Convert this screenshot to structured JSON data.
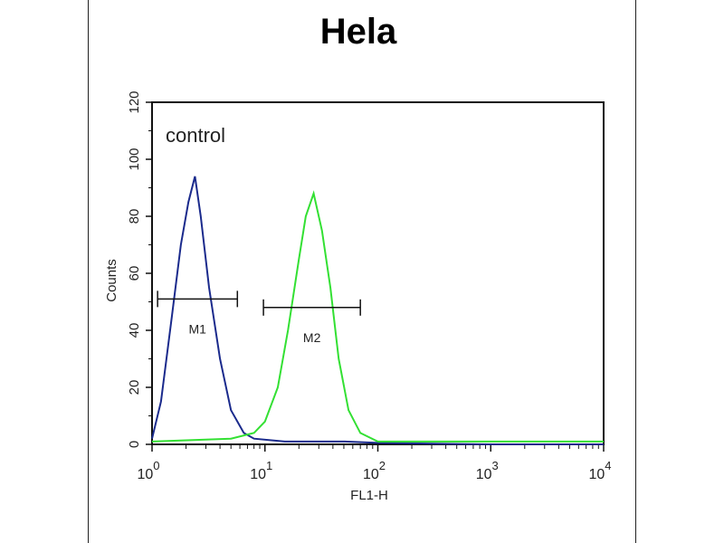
{
  "chart_data": {
    "type": "line",
    "title": "Hela",
    "annotation": "control",
    "xlabel": "FL1-H",
    "ylabel": "Counts",
    "x_scale": "log",
    "xlim": [
      1,
      10000
    ],
    "ylim": [
      0,
      120
    ],
    "x_ticks": [
      {
        "base": "10",
        "exp": "0",
        "value": 1
      },
      {
        "base": "10",
        "exp": "1",
        "value": 10
      },
      {
        "base": "10",
        "exp": "2",
        "value": 100
      },
      {
        "base": "10",
        "exp": "3",
        "value": 1000
      },
      {
        "base": "10",
        "exp": "4",
        "value": 10000
      }
    ],
    "y_ticks": [
      "0",
      "20",
      "40",
      "60",
      "80",
      "100",
      "120"
    ],
    "grid": false,
    "series": [
      {
        "color": "#1a2a8c",
        "x": [
          1,
          1.2,
          1.5,
          1.8,
          2.1,
          2.4,
          2.7,
          3.2,
          4,
          5,
          6.5,
          8,
          15,
          50,
          100,
          1000,
          10000
        ],
        "y": [
          2,
          15,
          45,
          70,
          85,
          94,
          80,
          55,
          30,
          12,
          4,
          2,
          1,
          1,
          0.5,
          0,
          0
        ]
      },
      {
        "color": "#33e033",
        "x": [
          1,
          5,
          8,
          10,
          13,
          16,
          20,
          23,
          27,
          32,
          38,
          45,
          55,
          70,
          100,
          1000,
          10000
        ],
        "y": [
          1,
          2,
          4,
          8,
          20,
          40,
          65,
          80,
          88,
          75,
          55,
          30,
          12,
          4,
          1,
          1,
          1
        ]
      }
    ],
    "markers": [
      {
        "label": "M1",
        "x_range": [
          1.12,
          5.7
        ],
        "y": 51
      },
      {
        "label": "M2",
        "x_range": [
          9.7,
          70
        ],
        "y": 48
      }
    ]
  }
}
